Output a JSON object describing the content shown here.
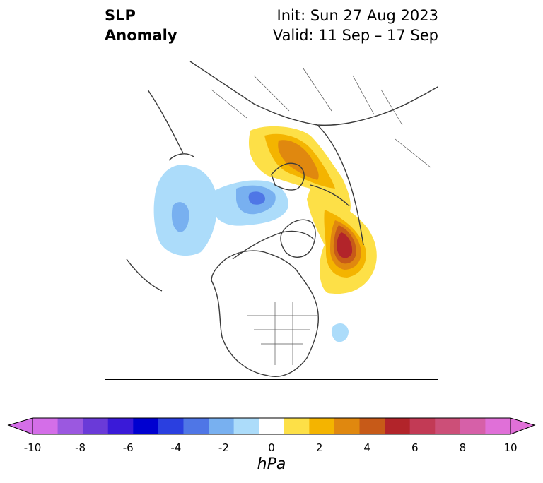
{
  "title": {
    "left_line1": "SLP",
    "left_line2": "Anomaly",
    "right_line1": "Init: Sun 27 Aug 2023",
    "right_line2": "Valid: 11 Sep – 17 Sep"
  },
  "map": {
    "projection": "polar stereographic (North Pole)",
    "variable": "SLP anomaly"
  },
  "colorbar": {
    "unit_label": "hPa",
    "min": -10,
    "max": 10,
    "tick_labels": [
      "-10",
      "-8",
      "-6",
      "-4",
      "-2",
      "0",
      "2",
      "4",
      "6",
      "8",
      "10"
    ],
    "levels": [
      -10,
      -9,
      -8,
      -7,
      -6,
      -5,
      -4,
      -3,
      -2,
      -1,
      1,
      2,
      3,
      4,
      5,
      6,
      7,
      8,
      9,
      10
    ],
    "colors": [
      "#d46ee8",
      "#9b58e0",
      "#6a3ad8",
      "#3a1ad8",
      "#0000d0",
      "#2a3fe0",
      "#4f76e6",
      "#78b0f0",
      "#acdcfa",
      "#ffffff",
      "#fde047",
      "#f4b400",
      "#e0880f",
      "#c75a18",
      "#b2242a",
      "#c23a55",
      "#cc4f78",
      "#d660a8",
      "#e070d8"
    ],
    "extend": "both"
  }
}
